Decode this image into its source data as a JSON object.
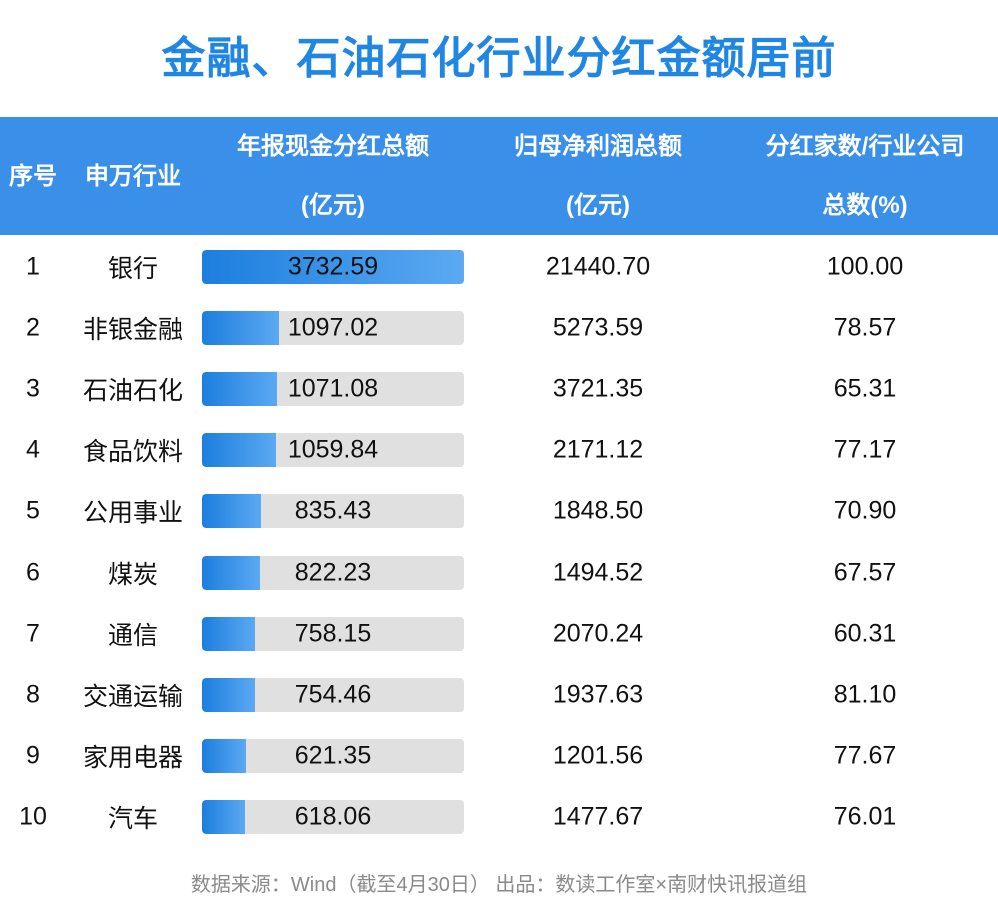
{
  "title": "金融、石油石化行业分红金额居前",
  "table": {
    "columns": [
      {
        "lines": [
          "序号"
        ]
      },
      {
        "lines": [
          "申万行业"
        ]
      },
      {
        "lines": [
          "年报现金分红总额",
          "(亿元)"
        ]
      },
      {
        "lines": [
          "归母净利润总额",
          "(亿元)"
        ]
      },
      {
        "lines": [
          "分红家数/行业公司",
          "总数(%)"
        ]
      }
    ],
    "rows": [
      [
        "1",
        "银行",
        "3732.59",
        "21440.70",
        "100.00"
      ],
      [
        "2",
        "非银金融",
        "1097.02",
        "5273.59",
        "78.57"
      ],
      [
        "3",
        "石油石化",
        "1071.08",
        "3721.35",
        "65.31"
      ],
      [
        "4",
        "食品饮料",
        "1059.84",
        "2171.12",
        "77.17"
      ],
      [
        "5",
        "公用事业",
        "835.43",
        "1848.50",
        "70.90"
      ],
      [
        "6",
        "煤炭",
        "822.23",
        "1494.52",
        "67.57"
      ],
      [
        "7",
        "通信",
        "758.15",
        "2070.24",
        "60.31"
      ],
      [
        "8",
        "交通运输",
        "754.46",
        "1937.63",
        "81.10"
      ],
      [
        "9",
        "家用电器",
        "621.35",
        "1201.56",
        "77.67"
      ],
      [
        "10",
        "汽车",
        "618.06",
        "1477.67",
        "76.01"
      ]
    ]
  },
  "footer": "数据来源：Wind（截至4月30日） 出品：数读工作室×南财快讯报道组"
}
